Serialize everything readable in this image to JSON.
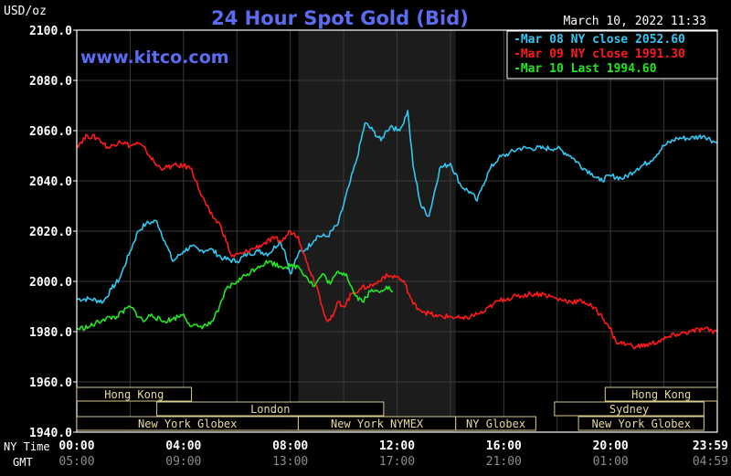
{
  "header": {
    "units": "USD/oz",
    "title": "24 Hour Spot Gold (Bid)",
    "timestamp": "March 10, 2022 11:33",
    "watermark": "www.kitco.com"
  },
  "legend": [
    {
      "label": "Mar 08 NY close 2052.60",
      "color": "#33c6f0"
    },
    {
      "label": "Mar 09 NY close 1991.30",
      "color": "#ff1a1a"
    },
    {
      "label": "Mar 10 Last 1994.60",
      "color": "#22e622"
    }
  ],
  "axis": {
    "y_ticks": [
      "2100.0",
      "2080.0",
      "2060.0",
      "2040.0",
      "2020.0",
      "2000.0",
      "1980.0",
      "1960.0",
      "1940.0"
    ],
    "row_label_ny": "NY Time",
    "row_label_gmt": "GMT",
    "ny_ticks": [
      "00:00",
      "04:00",
      "08:00",
      "12:00",
      "16:00",
      "20:00",
      "23:59"
    ],
    "gmt_ticks": [
      "05:00",
      "09:00",
      "13:00",
      "17:00",
      "21:00",
      "01:00",
      "04:59"
    ]
  },
  "sessions": [
    {
      "label": "Hong Kong",
      "start": 0,
      "end": 4.3
    },
    {
      "label": "London",
      "start": 3,
      "end": 11.5
    },
    {
      "label": "New York Globex",
      "start": 0,
      "end": 8.3
    },
    {
      "label": "New York NYMEX",
      "start": 8.3,
      "end": 14.2
    },
    {
      "label": "NY Globex",
      "start": 14.2,
      "end": 17.2
    },
    {
      "label": "Hong Kong",
      "start": 19.8,
      "end": 24
    },
    {
      "label": "Sydney",
      "start": 17.9,
      "end": 23.5
    },
    {
      "label": "New York Globex",
      "start": 18.8,
      "end": 23.5
    }
  ],
  "chart_data": {
    "type": "line",
    "title": "24 Hour Spot Gold (Bid)",
    "ylabel": "USD/oz",
    "xlabel": "NY Time",
    "xlim": [
      0,
      24
    ],
    "ylim": [
      1940,
      2100
    ],
    "grid": true,
    "legend_position": "top-right",
    "shaded_x_range": [
      8.3,
      14.2
    ],
    "series": [
      {
        "name": "Mar 08 NY close 2052.60",
        "color": "#33c6f0",
        "x": [
          0,
          0.5,
          1,
          1.3,
          1.6,
          2,
          2.3,
          2.6,
          3,
          3.3,
          3.6,
          4,
          4.3,
          4.6,
          5,
          5.5,
          6,
          6.4,
          6.8,
          7.2,
          7.6,
          7.8,
          8,
          8.3,
          8.6,
          9,
          9.4,
          9.8,
          10.2,
          10.5,
          10.8,
          11.1,
          11.4,
          11.6,
          11.8,
          12,
          12.2,
          12.4,
          12.6,
          12.9,
          13.2,
          13.6,
          14,
          14.4,
          14.8,
          15,
          15.2,
          15.5,
          15.8,
          16.2,
          16.6,
          17,
          17.5,
          18,
          18.5,
          19,
          19.3,
          19.6,
          20,
          20.5,
          21,
          21.5,
          22,
          22.5,
          23,
          23.5,
          23.99
        ],
        "values": [
          1993,
          1993,
          1992,
          1997,
          2001,
          2012,
          2020,
          2023,
          2024,
          2016,
          2008,
          2012,
          2014,
          2012,
          2013,
          2009,
          2008,
          2011,
          2012,
          2011,
          2016,
          2012,
          2003,
          2011,
          2013,
          2018,
          2018,
          2023,
          2038,
          2049,
          2063,
          2060,
          2056,
          2060,
          2062,
          2060,
          2062,
          2068,
          2046,
          2030,
          2026,
          2045,
          2047,
          2038,
          2035,
          2032,
          2038,
          2045,
          2049,
          2051,
          2053,
          2053,
          2053,
          2053,
          2050,
          2045,
          2043,
          2040,
          2042,
          2041,
          2045,
          2048,
          2054,
          2057,
          2057,
          2058,
          2055
        ]
      },
      {
        "name": "Mar 09 NY close 1991.30",
        "color": "#ff1a1a",
        "x": [
          0,
          0.4,
          0.8,
          1.2,
          1.6,
          2,
          2.3,
          2.6,
          3,
          3.3,
          3.6,
          4,
          4.3,
          4.6,
          5,
          5.4,
          5.8,
          6.2,
          6.6,
          7,
          7.4,
          7.7,
          8,
          8.3,
          8.6,
          9,
          9.2,
          9.4,
          9.6,
          9.8,
          10,
          10.3,
          10.6,
          10.9,
          11.2,
          11.5,
          11.8,
          12,
          12.3,
          12.6,
          13,
          13.5,
          14,
          14.5,
          15,
          15.3,
          15.6,
          16,
          16.5,
          17,
          17.5,
          18,
          18.5,
          19,
          19.3,
          19.6,
          19.9,
          20.2,
          20.6,
          21,
          21.5,
          22,
          22.5,
          23,
          23.5,
          23.99
        ],
        "values": [
          2054,
          2058,
          2057,
          2053,
          2056,
          2054,
          2055,
          2052,
          2046,
          2045,
          2046,
          2046,
          2045,
          2036,
          2027,
          2022,
          2010,
          2011,
          2013,
          2015,
          2017,
          2016,
          2020,
          2018,
          2008,
          1998,
          1990,
          1984,
          1986,
          1992,
          1990,
          1995,
          1997,
          1998,
          1999,
          2002,
          2002,
          2002,
          1999,
          1991,
          1988,
          1986,
          1986,
          1985,
          1987,
          1988,
          1991,
          1993,
          1994,
          1995,
          1995,
          1993,
          1992,
          1992,
          1990,
          1987,
          1983,
          1976,
          1975,
          1974,
          1975,
          1977,
          1979,
          1980,
          1981,
          1980
        ]
      },
      {
        "name": "Mar 10 Last 1994.60",
        "color": "#22e622",
        "x": [
          0,
          0.5,
          1,
          1.5,
          2,
          2.5,
          2.8,
          3.2,
          3.6,
          4,
          4.3,
          4.6,
          5,
          5.3,
          5.6,
          6,
          6.4,
          6.8,
          7.2,
          7.6,
          8,
          8.3,
          8.6,
          8.9,
          9.2,
          9.5,
          9.8,
          10.1,
          10.4,
          10.7,
          11,
          11.3,
          11.6,
          11.85
        ],
        "values": [
          1981,
          1982,
          1985,
          1986,
          1990,
          1984,
          1987,
          1984,
          1985,
          1987,
          1982,
          1982,
          1983,
          1988,
          1997,
          2000,
          2003,
          2006,
          2008,
          2006,
          2006,
          2006,
          2002,
          1998,
          2003,
          1999,
          2004,
          2003,
          1995,
          1992,
          1996,
          1996,
          1998,
          1996
        ]
      }
    ]
  }
}
